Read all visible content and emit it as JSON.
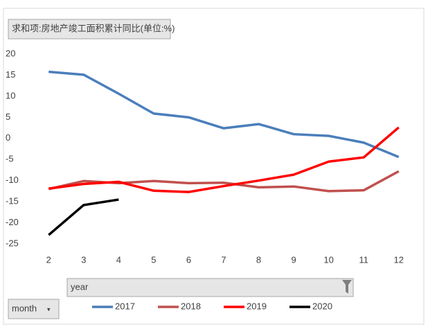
{
  "chart_data": {
    "type": "line",
    "title": "求和项:房地产竣工面积累计同比(单位:%)",
    "legend_field": "year",
    "axis_field": "month",
    "categories": [
      2,
      3,
      4,
      5,
      6,
      7,
      8,
      9,
      10,
      11,
      12
    ],
    "series": [
      {
        "name": "2017",
        "color": "#4a7ebb",
        "values": [
          15.8,
          15.1,
          10.6,
          5.9,
          5.0,
          2.4,
          3.4,
          1.0,
          0.6,
          -1.0,
          -4.4
        ]
      },
      {
        "name": "2018",
        "color": "#c0504d",
        "values": [
          -12.0,
          -10.1,
          -10.6,
          -10.1,
          -10.6,
          -10.5,
          -11.6,
          -11.4,
          -12.5,
          -12.3,
          -7.8
        ]
      },
      {
        "name": "2019",
        "color": "#ff0000",
        "values": [
          -11.9,
          -10.8,
          -10.3,
          -12.4,
          -12.7,
          -11.3,
          -10.0,
          -8.6,
          -5.5,
          -4.5,
          2.6
        ]
      },
      {
        "name": "2020",
        "color": "#000000",
        "values": [
          -22.9,
          -15.8,
          -14.5,
          null,
          null,
          null,
          null,
          null,
          null,
          null,
          null
        ]
      }
    ],
    "ylim": [
      -25,
      20
    ],
    "yticks": [
      -25,
      -20,
      -15,
      -10,
      -5,
      0,
      5,
      10,
      15,
      20
    ],
    "grid": false
  }
}
